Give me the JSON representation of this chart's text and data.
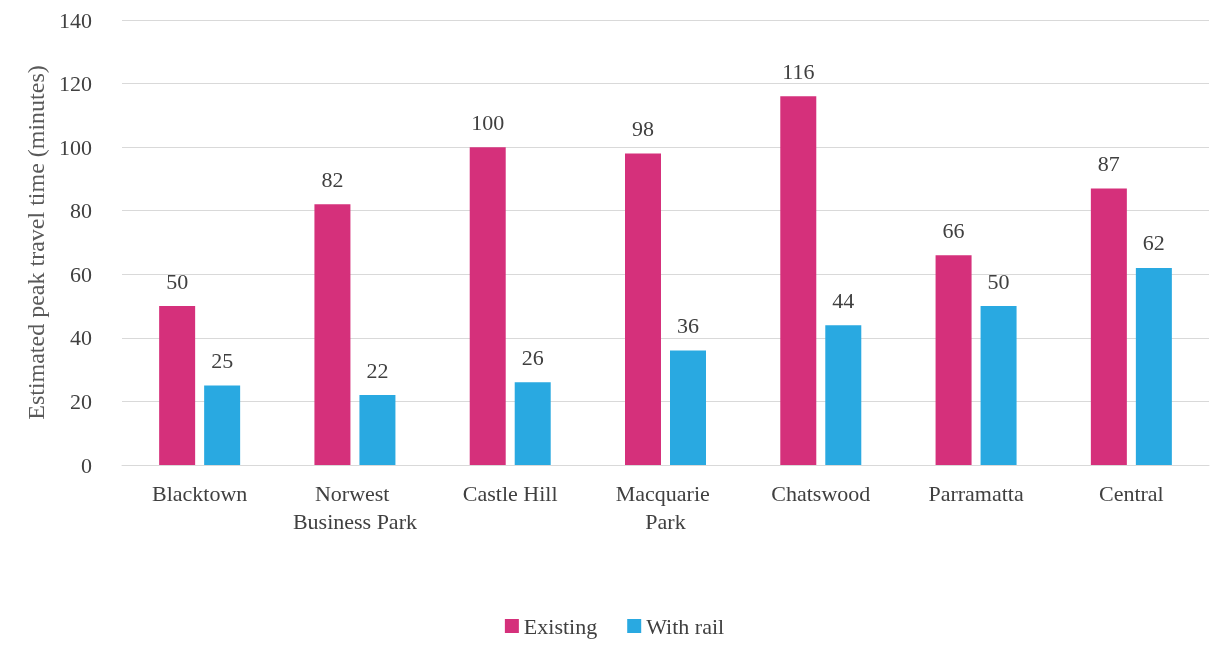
{
  "chart_data": {
    "type": "bar",
    "ylabel": "Estimated peak travel time (minutes)",
    "categories": [
      "Blacktown",
      "Norwest Business Park",
      "Castle Hill",
      "Macquarie Park",
      "Chatswood",
      "Parramatta",
      "Central"
    ],
    "series": [
      {
        "name": "Existing",
        "color": "#d5307b",
        "values": [
          50,
          82,
          100,
          98,
          116,
          66,
          87
        ]
      },
      {
        "name": "With rail",
        "color": "#29a9e1",
        "values": [
          25,
          22,
          26,
          36,
          44,
          50,
          62
        ]
      }
    ],
    "ylim": [
      0,
      140
    ],
    "yticks": [
      0,
      20,
      40,
      60,
      80,
      100,
      120,
      140
    ],
    "grid": "y",
    "legend": "bottom",
    "data_labels": true
  }
}
